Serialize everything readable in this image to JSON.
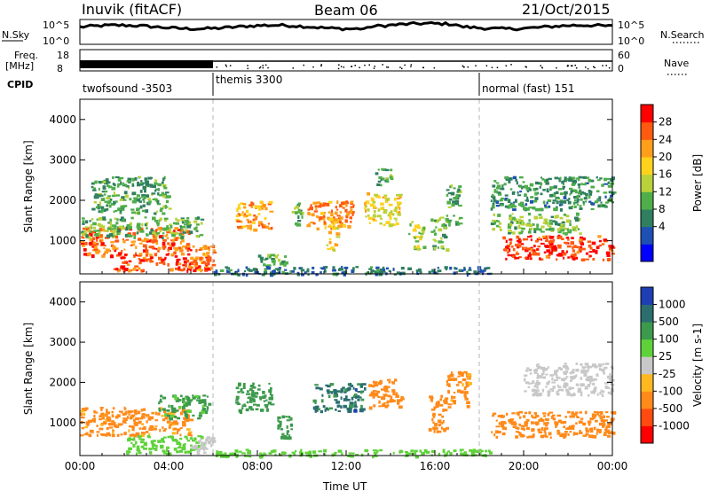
{
  "header": {
    "station": "Inuvik (fitACF)",
    "beam": "Beam 06",
    "date": "21/Oct/2015"
  },
  "top_panels": {
    "nsky_label": "N.Sky",
    "nsky_ticks": [
      "10^5",
      "10^0"
    ],
    "nsearch_label": "N.Search",
    "nsearch_ticks": [
      "10^5",
      "10^0"
    ],
    "freq_label": "Freq.",
    "freq_unit": "[MHz]",
    "freq_ticks": [
      "18",
      "8"
    ],
    "nave_label": "Nave",
    "nave_ticks": [
      "60",
      "0"
    ],
    "cpid_label": "CPID",
    "cpid_segments": [
      {
        "label": "twofsound -3503",
        "start_hour": 0
      },
      {
        "label": "themis 3300",
        "start_hour": 6
      },
      {
        "label": "normal (fast) 151",
        "start_hour": 18
      }
    ]
  },
  "chart_data": [
    {
      "type": "heatmap",
      "title": "",
      "xlabel": "Time UT",
      "ylabel": "Slant Range [km]",
      "xlim_hours": [
        0,
        24
      ],
      "ylim": [
        180,
        4500
      ],
      "x_ticks": [
        "00:00",
        "04:00",
        "08:00",
        "12:00",
        "16:00",
        "20:00",
        "00:00"
      ],
      "y_ticks": [
        1000,
        2000,
        3000,
        4000
      ],
      "colorbar": {
        "label": "Power [dB]",
        "ticks": [
          "28",
          "24",
          "20",
          "16",
          "12",
          "8",
          "4"
        ],
        "colors": [
          "#0000ff",
          "#1e50b4",
          "#2f7f60",
          "#4fae4a",
          "#b9d13a",
          "#ffd21e",
          "#ff9e1a",
          "#ff5a10",
          "#ff0000"
        ]
      },
      "patches": [
        {
          "t": [
            0.0,
            5.0
          ],
          "r": [
            650,
            1350
          ],
          "value": 26
        },
        {
          "t": [
            0.0,
            5.5
          ],
          "r": [
            1100,
            1600
          ],
          "value": 12
        },
        {
          "t": [
            1.5,
            5.8
          ],
          "r": [
            280,
            650
          ],
          "value": 27
        },
        {
          "t": [
            5.0,
            6.0
          ],
          "r": [
            250,
            900
          ],
          "value": 24
        },
        {
          "t": [
            0.5,
            4.0
          ],
          "r": [
            1700,
            2600
          ],
          "value": 10
        },
        {
          "t": [
            7.0,
            8.6
          ],
          "r": [
            1300,
            2000
          ],
          "value": 22
        },
        {
          "t": [
            8.0,
            9.3
          ],
          "r": [
            400,
            700
          ],
          "value": 12
        },
        {
          "t": [
            9.5,
            10.0
          ],
          "r": [
            1400,
            1950
          ],
          "value": 12
        },
        {
          "t": [
            10.2,
            12.3
          ],
          "r": [
            1300,
            2000
          ],
          "value": 24
        },
        {
          "t": [
            11.1,
            11.6
          ],
          "r": [
            800,
            1600
          ],
          "value": 20
        },
        {
          "t": [
            12.8,
            14.4
          ],
          "r": [
            1400,
            2200
          ],
          "value": 18
        },
        {
          "t": [
            13.3,
            14.0
          ],
          "r": [
            2400,
            2800
          ],
          "value": 10
        },
        {
          "t": [
            14.8,
            15.5
          ],
          "r": [
            800,
            1500
          ],
          "value": 14
        },
        {
          "t": [
            15.8,
            16.5
          ],
          "r": [
            800,
            1600
          ],
          "value": 12
        },
        {
          "t": [
            16.5,
            17.1
          ],
          "r": [
            1400,
            2400
          ],
          "value": 10
        },
        {
          "t": [
            19.0,
            24.0
          ],
          "r": [
            550,
            1150
          ],
          "value": 28
        },
        {
          "t": [
            18.5,
            22.5
          ],
          "r": [
            1200,
            1700
          ],
          "value": 12
        },
        {
          "t": [
            18.5,
            24.0
          ],
          "r": [
            1800,
            2600
          ],
          "value": 9
        },
        {
          "t": [
            6.0,
            18.5
          ],
          "r": [
            180,
            380
          ],
          "value": 6
        }
      ]
    },
    {
      "type": "heatmap",
      "title": "",
      "xlabel": "Time UT",
      "ylabel": "Slant Range [km]",
      "xlim_hours": [
        0,
        24
      ],
      "ylim": [
        180,
        4500
      ],
      "x_ticks": [
        "00:00",
        "04:00",
        "08:00",
        "12:00",
        "16:00",
        "20:00",
        "00:00"
      ],
      "y_ticks": [
        1000,
        2000,
        3000,
        4000
      ],
      "colorbar": {
        "label": "Velocity [m s-1]",
        "ticks": [
          "1000",
          "500",
          "100",
          "25",
          "-25",
          "-100",
          "-500",
          "-1000"
        ],
        "colors": [
          "#ff0000",
          "#ff4a10",
          "#ff8a1a",
          "#ffb820",
          "#c8c8c8",
          "#5fd23a",
          "#3c9a4c",
          "#2c6e70",
          "#1e3fb4"
        ]
      },
      "patches": [
        {
          "t": [
            0.0,
            5.0
          ],
          "r": [
            700,
            1400
          ],
          "value": -150
        },
        {
          "t": [
            3.5,
            5.8
          ],
          "r": [
            1100,
            1700
          ],
          "value": 150
        },
        {
          "t": [
            2.0,
            5.5
          ],
          "r": [
            250,
            700
          ],
          "value": 60
        },
        {
          "t": [
            5.0,
            6.0
          ],
          "r": [
            250,
            700
          ],
          "value": 0
        },
        {
          "t": [
            7.0,
            8.6
          ],
          "r": [
            1300,
            2000
          ],
          "value": 300
        },
        {
          "t": [
            8.8,
            9.5
          ],
          "r": [
            600,
            1200
          ],
          "value": 300
        },
        {
          "t": [
            10.5,
            12.8
          ],
          "r": [
            1300,
            2000
          ],
          "value": 700
        },
        {
          "t": [
            13.0,
            14.5
          ],
          "r": [
            1400,
            2100
          ],
          "value": -200
        },
        {
          "t": [
            15.7,
            16.5
          ],
          "r": [
            800,
            1700
          ],
          "value": -300
        },
        {
          "t": [
            16.5,
            17.5
          ],
          "r": [
            1400,
            2300
          ],
          "value": -150
        },
        {
          "t": [
            18.5,
            24.0
          ],
          "r": [
            650,
            1300
          ],
          "value": -300
        },
        {
          "t": [
            20.0,
            24.0
          ],
          "r": [
            1700,
            2500
          ],
          "value": 0
        },
        {
          "t": [
            6.0,
            18.5
          ],
          "r": [
            180,
            350
          ],
          "value": 60
        }
      ]
    }
  ]
}
